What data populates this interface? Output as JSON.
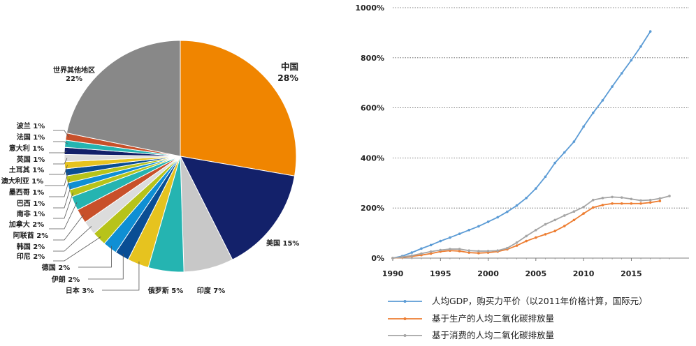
{
  "chart_data": [
    {
      "type": "pie",
      "title": "",
      "slices": [
        {
          "label": "中国",
          "value_label": "28%",
          "value": 28,
          "color": "#f08500"
        },
        {
          "label": "美国",
          "value_label": "15%",
          "value": 15,
          "color": "#13216a"
        },
        {
          "label": "印度",
          "value_label": "7%",
          "value": 7,
          "color": "#c8c8c8"
        },
        {
          "label": "俄罗斯",
          "value_label": "5%",
          "value": 5,
          "color": "#25b4b1"
        },
        {
          "label": "日本",
          "value_label": "3%",
          "value": 3,
          "color": "#e6c31f"
        },
        {
          "label": "伊朗",
          "value_label": "2%",
          "value": 2,
          "color": "#0a4e94"
        },
        {
          "label": "德国",
          "value_label": "2%",
          "value": 2,
          "color": "#0f8fd4"
        },
        {
          "label": "印尼",
          "value_label": "2%",
          "value": 2,
          "color": "#b7c31a"
        },
        {
          "label": "韩国",
          "value_label": "2%",
          "value": 2,
          "color": "#dcdcdc"
        },
        {
          "label": "阿联酋",
          "value_label": "2%",
          "value": 2,
          "color": "#c8502a"
        },
        {
          "label": "加拿大",
          "value_label": "2%",
          "value": 2,
          "color": "#25b4b1"
        },
        {
          "label": "南非",
          "value_label": "1%",
          "value": 1,
          "color": "#b7c31a"
        },
        {
          "label": "巴西",
          "value_label": "1%",
          "value": 1,
          "color": "#0f8fd4"
        },
        {
          "label": "墨西哥",
          "value_label": "1%",
          "value": 1,
          "color": "#b7c31a"
        },
        {
          "label": "澳大利亚",
          "value_label": "1%",
          "value": 1,
          "color": "#0a4e94"
        },
        {
          "label": "土耳其",
          "value_label": "1%",
          "value": 1,
          "color": "#e6c31f"
        },
        {
          "label": "英国",
          "value_label": "1%",
          "value": 1,
          "color": "#dcdcdc"
        },
        {
          "label": "意大利",
          "value_label": "1%",
          "value": 1,
          "color": "#13216a"
        },
        {
          "label": "法国",
          "value_label": "1%",
          "value": 1,
          "color": "#25b4b1"
        },
        {
          "label": "波兰",
          "value_label": "1%",
          "value": 1,
          "color": "#c8502a"
        },
        {
          "label": "世界其他地区",
          "value_label": "22%",
          "value": 22,
          "color": "#888888"
        }
      ]
    },
    {
      "type": "line",
      "title": "",
      "xlabel": "",
      "ylabel": "",
      "xlim": [
        1990,
        2019
      ],
      "ylim": [
        0,
        1000
      ],
      "x_ticks": [
        1990,
        1995,
        2000,
        2005,
        2010,
        2015
      ],
      "y_ticks": [
        0,
        200,
        400,
        600,
        800,
        1000
      ],
      "y_tick_labels": [
        "0%",
        "200%",
        "400%",
        "600%",
        "800%",
        "1000%"
      ],
      "grid": "horizontal-dotted",
      "legend_position": "bottom",
      "series": [
        {
          "name": "人均GDP，购买力平价（以2011年价格计算，国际元）",
          "color": "#5b9bd5",
          "x": [
            1990,
            1991,
            1992,
            1993,
            1994,
            1995,
            1996,
            1997,
            1998,
            1999,
            2000,
            2001,
            2002,
            2003,
            2004,
            2005,
            2006,
            2007,
            2008,
            2009,
            2010,
            2011,
            2012,
            2013,
            2014,
            2015,
            2016,
            2017
          ],
          "y": [
            0,
            8,
            22,
            38,
            52,
            68,
            82,
            97,
            112,
            127,
            145,
            163,
            185,
            210,
            240,
            278,
            325,
            380,
            422,
            465,
            525,
            580,
            630,
            685,
            738,
            790,
            845,
            905
          ]
        },
        {
          "name": "基于生产的人均二氧化碳排放量",
          "color": "#ed7d31",
          "x": [
            1990,
            1991,
            1992,
            1993,
            1994,
            1995,
            1996,
            1997,
            1998,
            1999,
            2000,
            2001,
            2002,
            2003,
            2004,
            2005,
            2006,
            2007,
            2008,
            2009,
            2010,
            2011,
            2012,
            2013,
            2014,
            2015,
            2016,
            2017,
            2018
          ],
          "y": [
            0,
            3,
            7,
            12,
            18,
            26,
            30,
            28,
            22,
            20,
            22,
            26,
            35,
            50,
            68,
            82,
            95,
            108,
            128,
            152,
            178,
            202,
            212,
            218,
            218,
            218,
            218,
            222,
            228
          ]
        },
        {
          "name": "基于消费的人均二氧化碳排放量",
          "color": "#a5a5a5",
          "x": [
            1990,
            1991,
            1992,
            1993,
            1994,
            1995,
            1996,
            1997,
            1998,
            1999,
            2000,
            2001,
            2002,
            2003,
            2004,
            2005,
            2006,
            2007,
            2008,
            2009,
            2010,
            2011,
            2012,
            2013,
            2014,
            2015,
            2016,
            2017,
            2018,
            2019
          ],
          "y": [
            0,
            5,
            10,
            18,
            26,
            32,
            36,
            36,
            30,
            28,
            28,
            30,
            40,
            62,
            88,
            112,
            135,
            152,
            170,
            186,
            204,
            232,
            240,
            244,
            242,
            236,
            230,
            232,
            238,
            248
          ]
        }
      ]
    }
  ]
}
